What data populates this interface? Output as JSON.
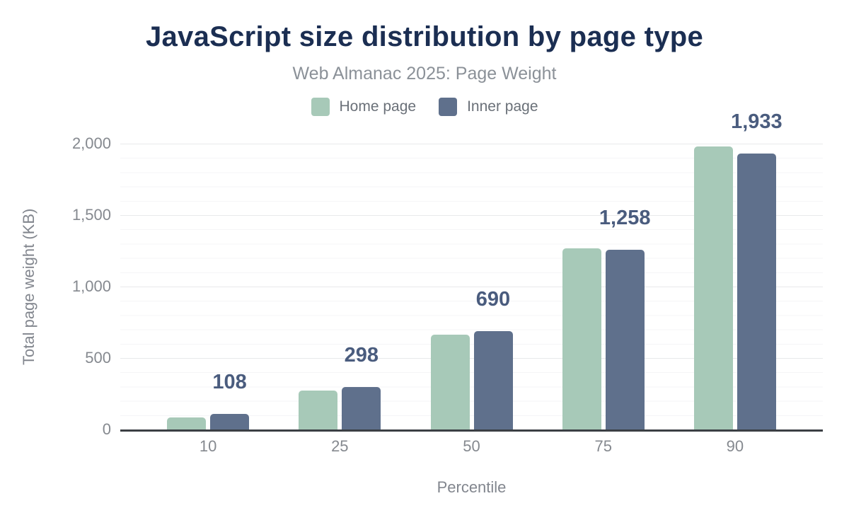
{
  "header": {
    "title": "JavaScript size distribution by page type",
    "subtitle": "Web Almanac 2025: Page Weight"
  },
  "legend": [
    {
      "label": "Home page",
      "color": "#a7c9b8"
    },
    {
      "label": "Inner page",
      "color": "#5f708c"
    }
  ],
  "chart_data": {
    "type": "bar",
    "title": "JavaScript size distribution by page type",
    "subtitle": "Web Almanac 2025: Page Weight",
    "categories": [
      "10",
      "25",
      "50",
      "75",
      "90"
    ],
    "series": [
      {
        "name": "Home page",
        "color": "#a7c9b8",
        "values": [
          84,
          273,
          665,
          1270,
          1980
        ]
      },
      {
        "name": "Inner page",
        "color": "#5f708c",
        "values": [
          108,
          298,
          690,
          1258,
          1933
        ]
      }
    ],
    "data_labels": [
      "108",
      "298",
      "690",
      "1,258",
      "1,933"
    ],
    "data_labels_series": "Inner page",
    "xlabel": "Percentile",
    "ylabel": "Total page weight (KB)",
    "ylim": [
      0,
      2000
    ],
    "y_ticks": [
      {
        "value": 0,
        "label": "0"
      },
      {
        "value": 500,
        "label": "500"
      },
      {
        "value": 1000,
        "label": "1,000"
      },
      {
        "value": 1500,
        "label": "1,500"
      },
      {
        "value": 2000,
        "label": "2,000"
      }
    ],
    "minor_grid_step": 100,
    "grid": true,
    "legend_position": "top"
  },
  "colors": {
    "title": "#1b2e52",
    "subtitle": "#8b9198",
    "data_label": "#4a5c7e",
    "tick_label": "#85898f",
    "axis_title": "#82868e",
    "axis_line": "#3b3f44",
    "grid_major": "#e8e9eb",
    "grid_minor": "#f5f5f7",
    "background": "#ffffff"
  }
}
